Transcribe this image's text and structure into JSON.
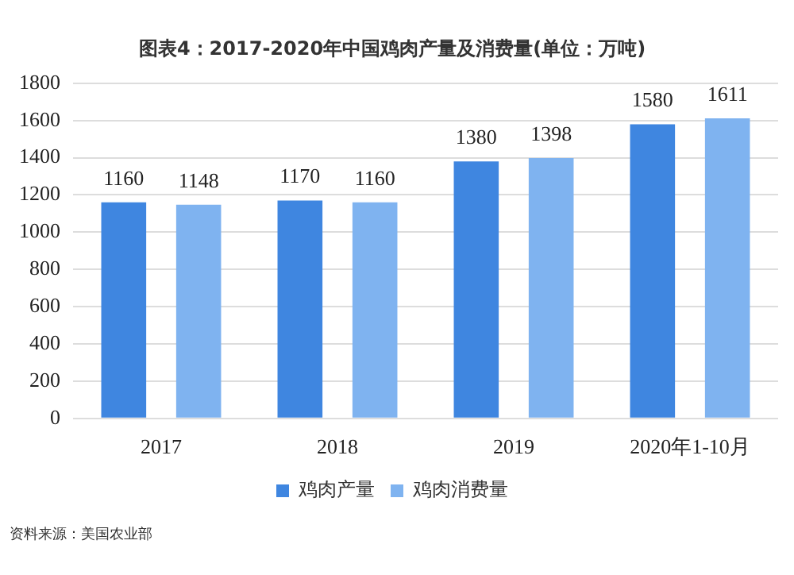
{
  "chart_data": {
    "type": "bar",
    "title": "图表4：2017-2020年中国鸡肉产量及消费量(单位：万吨)",
    "categories": [
      "2017",
      "2018",
      "2019",
      "2020年1-10月"
    ],
    "series": [
      {
        "name": "鸡肉产量",
        "color": "#3f86e0",
        "values": [
          1160,
          1170,
          1380,
          1580
        ]
      },
      {
        "name": "鸡肉消费量",
        "color": "#7fb3f0",
        "values": [
          1148,
          1160,
          1398,
          1611
        ]
      }
    ],
    "ylim": [
      0,
      1800
    ],
    "yticks": [
      0,
      200,
      400,
      600,
      800,
      1000,
      1200,
      1400,
      1600,
      1800
    ],
    "grid": "y",
    "legend": "bottom",
    "data_labels": true,
    "annotations": [
      "资料来源：美国农业部"
    ]
  }
}
